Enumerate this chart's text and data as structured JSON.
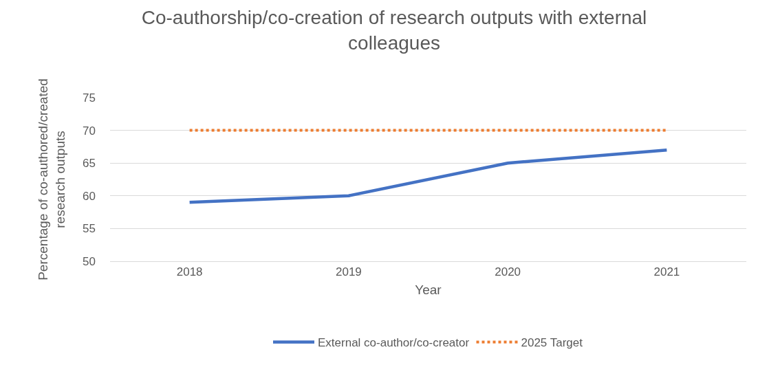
{
  "chart_data": {
    "type": "line",
    "title": "Co-authorship/co-creation of research outputs with external colleagues",
    "xlabel": "Year",
    "ylabel": "Percentage of co-authored/created research outputs",
    "categories": [
      "2018",
      "2019",
      "2020",
      "2021"
    ],
    "series": [
      {
        "name": "External co-author/co-creator",
        "color": "#4472c4",
        "values": [
          59,
          60,
          65,
          67
        ],
        "line_style": "solid"
      },
      {
        "name": "2025 Target",
        "color": "#ed7d31",
        "values": [
          70,
          70,
          70,
          70
        ],
        "line_style": "dotted"
      }
    ],
    "ylim": [
      50,
      75
    ],
    "yticks": [
      50,
      55,
      60,
      65,
      70,
      75
    ],
    "grid": "y",
    "legend": "bottom",
    "marker": "none"
  }
}
